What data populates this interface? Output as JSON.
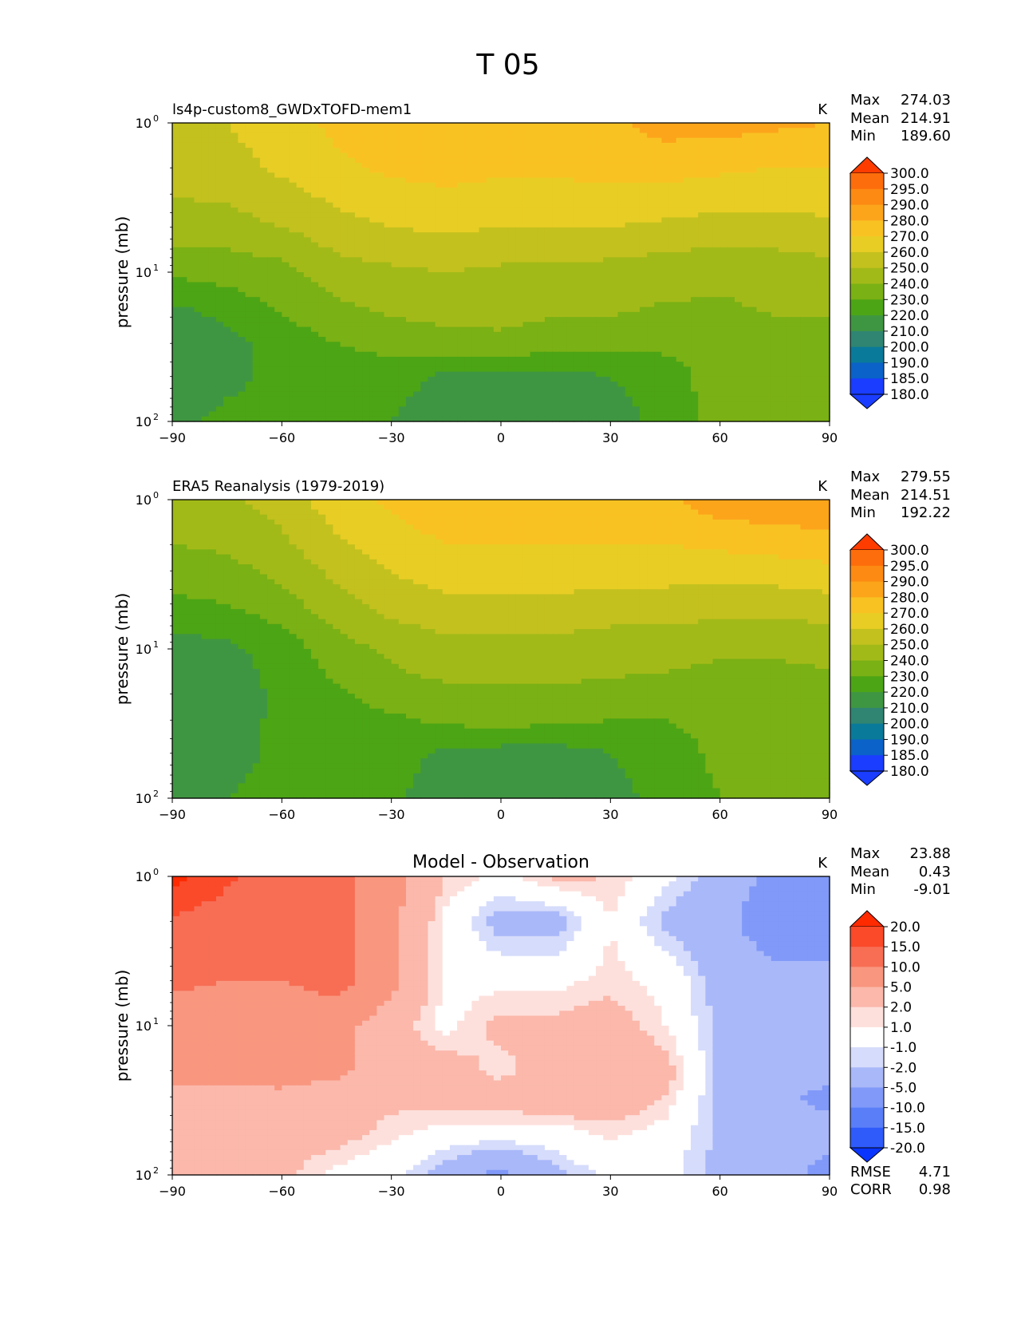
{
  "figure_title": "T 05",
  "colors": {
    "abs_levels": [
      "#1a3dff",
      "#0b62c8",
      "#0a7a9a",
      "#2f8572",
      "#3f9642",
      "#4ca515",
      "#7ab114",
      "#a2ba18",
      "#c3c11e",
      "#e8cd24",
      "#f9c223",
      "#fca51b",
      "#fd8a12",
      "#fe6d0b",
      "#ff3c00"
    ],
    "diff_levels": [
      "#0a35ff",
      "#2f5bfb",
      "#5a7ef8",
      "#8199f8",
      "#a9b8f9",
      "#d6dcfb",
      "#ffffff",
      "#fde0dc",
      "#fbb8ab",
      "#f9967f",
      "#f76e55",
      "#fa4a2a",
      "#fe2a00"
    ]
  },
  "chart_data": [
    {
      "type": "heatmap",
      "title": "ls4p-custom8_GWDxTOFD-mem1",
      "units": "K",
      "xlabel": "",
      "ylabel": "pressure (mb)",
      "x_ticks": [
        "−90",
        "−60",
        "−30",
        "0",
        "30",
        "60",
        "90"
      ],
      "y_ticks": [
        {
          "base": "10",
          "exp": "0"
        },
        {
          "base": "10",
          "exp": "1"
        },
        {
          "base": "10",
          "exp": "2"
        }
      ],
      "xlim": [
        -90,
        90
      ],
      "ylim": [
        100,
        1
      ],
      "y_scale": "log",
      "latitudes": [
        -90,
        -75,
        -60,
        -45,
        -30,
        -15,
        0,
        15,
        30,
        45,
        60,
        75,
        90
      ],
      "pressures": [
        1,
        2,
        5,
        10,
        20,
        30,
        50,
        100
      ],
      "values": [
        [
          248,
          250,
          256,
          262,
          266,
          268,
          266,
          266,
          268,
          274,
          274,
          272,
          270
        ],
        [
          244,
          246,
          252,
          258,
          262,
          264,
          262,
          262,
          264,
          264,
          262,
          260,
          260
        ],
        [
          236,
          236,
          240,
          246,
          250,
          252,
          250,
          250,
          250,
          248,
          246,
          246,
          248
        ],
        [
          222,
          224,
          226,
          236,
          238,
          240,
          238,
          238,
          236,
          234,
          232,
          234,
          236
        ],
        [
          205,
          212,
          220,
          226,
          230,
          232,
          232,
          230,
          230,
          228,
          228,
          230,
          230
        ],
        [
          202,
          206,
          214,
          220,
          224,
          226,
          228,
          226,
          224,
          222,
          224,
          226,
          228
        ],
        [
          204,
          208,
          212,
          214,
          214,
          208,
          206,
          206,
          210,
          216,
          224,
          226,
          226
        ],
        [
          208,
          212,
          212,
          212,
          210,
          204,
          200,
          200,
          204,
          214,
          224,
          226,
          226
        ]
      ],
      "stats": {
        "max_label": "Max",
        "max": "274.03",
        "mean_label": "Mean",
        "mean": "214.91",
        "min_label": "Min",
        "min": "189.60"
      },
      "colorbar_levels": [
        "300.0",
        "295.0",
        "290.0",
        "280.0",
        "270.0",
        "260.0",
        "250.0",
        "240.0",
        "230.0",
        "220.0",
        "210.0",
        "200.0",
        "190.0",
        "185.0",
        "180.0"
      ],
      "thresholds": [
        180,
        185,
        190,
        200,
        210,
        220,
        230,
        240,
        250,
        260,
        270,
        280,
        290,
        295,
        300
      ]
    },
    {
      "type": "heatmap",
      "title": "ERA5 Reanalysis (1979-2019)",
      "units": "K",
      "xlabel": "",
      "ylabel": "pressure (mb)",
      "x_ticks": [
        "−90",
        "−60",
        "−30",
        "0",
        "30",
        "60",
        "90"
      ],
      "y_ticks": [
        {
          "base": "10",
          "exp": "0"
        },
        {
          "base": "10",
          "exp": "1"
        },
        {
          "base": "10",
          "exp": "2"
        }
      ],
      "xlim": [
        -90,
        90
      ],
      "ylim": [
        100,
        1
      ],
      "y_scale": "log",
      "latitudes": [
        -90,
        -75,
        -60,
        -45,
        -30,
        -15,
        0,
        15,
        30,
        45,
        60,
        75,
        90
      ],
      "pressures": [
        1,
        2,
        5,
        10,
        20,
        30,
        50,
        100
      ],
      "values": [
        [
          236,
          238,
          244,
          256,
          262,
          266,
          266,
          266,
          266,
          268,
          276,
          278,
          278
        ],
        [
          230,
          232,
          238,
          248,
          256,
          260,
          260,
          260,
          260,
          260,
          262,
          264,
          266
        ],
        [
          218,
          220,
          226,
          236,
          244,
          248,
          248,
          248,
          246,
          246,
          244,
          244,
          246
        ],
        [
          205,
          208,
          214,
          226,
          232,
          236,
          236,
          236,
          234,
          234,
          232,
          232,
          232
        ],
        [
          202,
          205,
          212,
          218,
          226,
          228,
          228,
          228,
          228,
          226,
          224,
          224,
          228
        ],
        [
          202,
          206,
          212,
          216,
          218,
          222,
          224,
          222,
          220,
          220,
          222,
          224,
          226
        ],
        [
          204,
          206,
          212,
          214,
          214,
          208,
          206,
          206,
          210,
          216,
          222,
          224,
          224
        ],
        [
          206,
          210,
          214,
          214,
          212,
          204,
          200,
          200,
          206,
          214,
          220,
          224,
          224
        ]
      ],
      "stats": {
        "max_label": "Max",
        "max": "279.55",
        "mean_label": "Mean",
        "mean": "214.51",
        "min_label": "Min",
        "min": "192.22"
      },
      "colorbar_levels": [
        "300.0",
        "295.0",
        "290.0",
        "280.0",
        "270.0",
        "260.0",
        "250.0",
        "240.0",
        "230.0",
        "220.0",
        "210.0",
        "200.0",
        "190.0",
        "185.0",
        "180.0"
      ],
      "thresholds": [
        180,
        185,
        190,
        200,
        210,
        220,
        230,
        240,
        250,
        260,
        270,
        280,
        290,
        295,
        300
      ]
    },
    {
      "type": "heatmap",
      "title": "Model - Observation",
      "units": "K",
      "xlabel": "",
      "ylabel": "pressure (mb)",
      "x_ticks": [
        "−90",
        "−60",
        "−30",
        "0",
        "30",
        "60",
        "90"
      ],
      "y_ticks": [
        {
          "base": "10",
          "exp": "0"
        },
        {
          "base": "10",
          "exp": "1"
        },
        {
          "base": "10",
          "exp": "2"
        }
      ],
      "xlim": [
        -90,
        90
      ],
      "ylim": [
        100,
        1
      ],
      "y_scale": "log",
      "latitudes": [
        -90,
        -75,
        -60,
        -45,
        -30,
        -15,
        0,
        15,
        30,
        45,
        60,
        75,
        90
      ],
      "pressures": [
        1,
        2,
        5,
        10,
        20,
        30,
        50,
        100
      ],
      "values": [
        [
          22,
          16,
          12,
          12,
          6,
          2,
          0.5,
          2.5,
          2,
          -0.5,
          -3,
          -6,
          -6
        ],
        [
          14,
          12,
          12,
          12,
          6,
          0.5,
          -3,
          -3,
          1,
          -2.5,
          -4,
          -7,
          -7
        ],
        [
          11,
          10,
          10,
          12,
          6,
          0.5,
          0.5,
          0.5,
          1.5,
          0.5,
          -3,
          -4,
          -4
        ],
        [
          7,
          7,
          7,
          6,
          3,
          0.5,
          2.5,
          2.5,
          3,
          1,
          -2.5,
          -3,
          -3
        ],
        [
          6,
          6,
          7,
          6,
          3,
          3,
          1.5,
          3,
          4,
          3,
          -2.5,
          -3,
          -4
        ],
        [
          4,
          4,
          4,
          3,
          2.5,
          3,
          3,
          4,
          4,
          2,
          -2.5,
          -4,
          -6
        ],
        [
          3,
          3,
          3,
          3,
          1.5,
          0.5,
          0.5,
          0.5,
          1.5,
          0.5,
          -2.5,
          -3,
          -4
        ],
        [
          2.5,
          2.5,
          2.5,
          0.5,
          -0.5,
          -3,
          -6,
          -2.5,
          -0.5,
          -0.5,
          -2.5,
          -4,
          -6
        ]
      ],
      "stats": {
        "max_label": "Max",
        "max": "23.88",
        "mean_label": "Mean",
        "mean": "0.43",
        "min_label": "Min",
        "min": "-9.01"
      },
      "colorbar_levels": [
        "20.0",
        "15.0",
        "10.0",
        "5.0",
        "2.0",
        "1.0",
        "-1.0",
        "-2.0",
        "-5.0",
        "-10.0",
        "-15.0",
        "-20.0"
      ],
      "thresholds": [
        -20,
        -15,
        -10,
        -5,
        -2,
        -1,
        1,
        2,
        5,
        10,
        15,
        20
      ],
      "metrics": {
        "rmse_label": "RMSE",
        "rmse": "4.71",
        "corr_label": "CORR",
        "corr": "0.98"
      }
    }
  ]
}
